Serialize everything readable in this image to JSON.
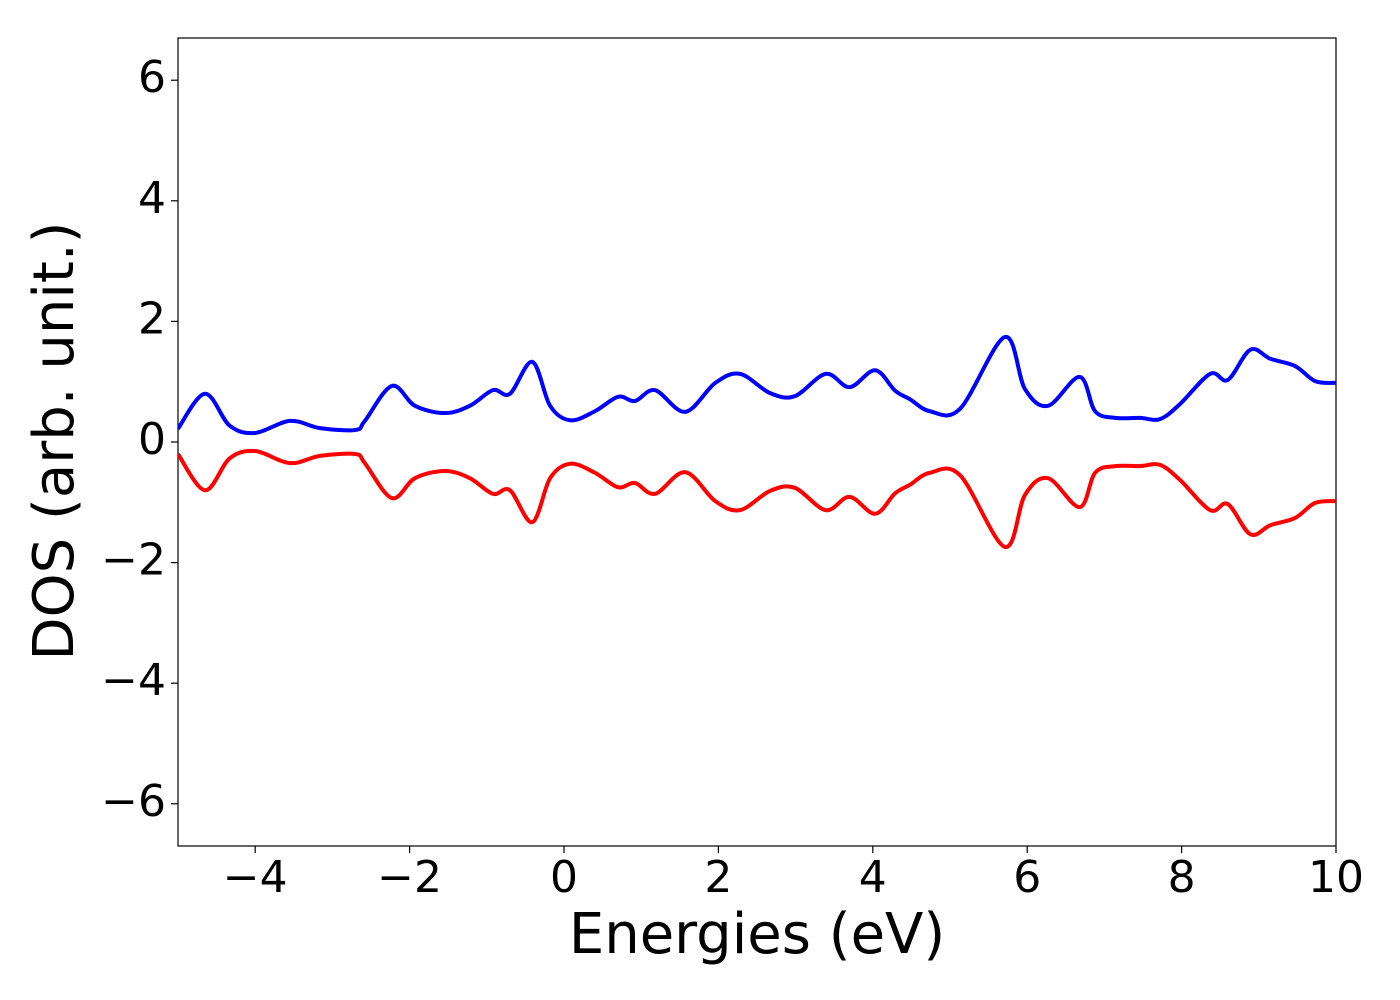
{
  "chart_data": {
    "type": "line",
    "x_label": "Energies (eV)",
    "y_label": "DOS (arb. unit.)",
    "x": [
      -5,
      -4.65,
      -4.33,
      -4.0,
      -3.55,
      -3.16,
      -2.7,
      -2.58,
      -2.23,
      -1.93,
      -1.54,
      -1.22,
      -0.92,
      -0.7,
      -0.41,
      -0.18,
      0.08,
      0.4,
      0.7,
      0.92,
      1.18,
      1.57,
      1.96,
      2.28,
      2.67,
      2.99,
      3.39,
      3.7,
      4.03,
      4.29,
      4.48,
      4.74,
      5.13,
      5.71,
      5.97,
      6.27,
      6.68,
      6.88,
      7.14,
      7.46,
      7.72,
      7.98,
      8.37,
      8.6,
      8.89,
      9.15,
      9.47,
      9.73,
      10
    ],
    "series": [
      {
        "color": "#0000ff",
        "values": [
          0.22,
          0.8,
          0.27,
          0.15,
          0.35,
          0.23,
          0.2,
          0.35,
          0.93,
          0.6,
          0.48,
          0.6,
          0.86,
          0.8,
          1.33,
          0.6,
          0.36,
          0.51,
          0.75,
          0.68,
          0.86,
          0.5,
          0.98,
          1.13,
          0.81,
          0.76,
          1.13,
          0.91,
          1.19,
          0.85,
          0.71,
          0.51,
          0.55,
          1.74,
          0.88,
          0.6,
          1.08,
          0.51,
          0.4,
          0.4,
          0.38,
          0.63,
          1.13,
          1.03,
          1.53,
          1.38,
          1.26,
          1.01,
          0.98
        ]
      },
      {
        "color": "#ff0000",
        "values": [
          -0.2,
          -0.8,
          -0.27,
          -0.15,
          -0.35,
          -0.23,
          -0.2,
          -0.35,
          -0.93,
          -0.6,
          -0.48,
          -0.6,
          -0.86,
          -0.8,
          -1.33,
          -0.6,
          -0.36,
          -0.51,
          -0.75,
          -0.68,
          -0.86,
          -0.5,
          -0.98,
          -1.13,
          -0.81,
          -0.76,
          -1.13,
          -0.91,
          -1.19,
          -0.85,
          -0.71,
          -0.51,
          -0.55,
          -1.74,
          -0.88,
          -0.6,
          -1.08,
          -0.51,
          -0.4,
          -0.4,
          -0.38,
          -0.63,
          -1.13,
          -1.03,
          -1.53,
          -1.38,
          -1.26,
          -1.01,
          -0.98
        ]
      }
    ],
    "xlim": [
      -5,
      10
    ],
    "xticks": [
      {
        "value": -4,
        "label": "−4"
      },
      {
        "value": -2,
        "label": "−2"
      },
      0,
      2,
      4,
      6,
      8,
      10
    ],
    "ylim": [
      -6.7,
      6.7
    ],
    "yticks": [
      {
        "value": -6,
        "label": "−6"
      },
      {
        "value": -4,
        "label": "−4"
      },
      {
        "value": -2,
        "label": "−2"
      },
      0,
      2,
      4,
      6
    ],
    "grid": false
  }
}
